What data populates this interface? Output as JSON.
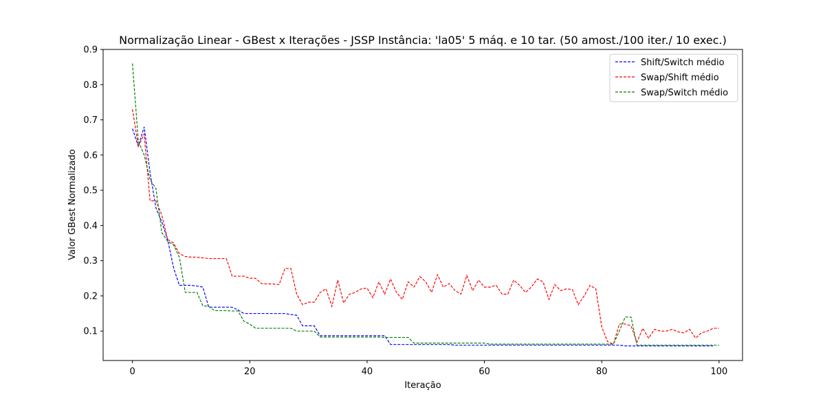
{
  "chart_data": {
    "type": "line",
    "title": "Normalização Linear - GBest x Iterações - JSSP Instância: 'la05' 5 máq. e 10 tar. (50 amost./100 iter./ 10 exec.)",
    "xlabel": "Iteração",
    "ylabel": "Valor GBest Normalizado",
    "xlim": [
      -5,
      104
    ],
    "ylim": [
      0.0165,
      0.9
    ],
    "xticks": [
      0,
      20,
      40,
      60,
      80,
      100
    ],
    "xtick_labels": [
      "0",
      "20",
      "40",
      "60",
      "80",
      "100"
    ],
    "yticks": [
      0.1,
      0.2,
      0.3,
      0.4,
      0.5,
      0.6,
      0.7,
      0.8,
      0.9
    ],
    "ytick_labels": [
      "0.1",
      "0.2",
      "0.3",
      "0.4",
      "0.5",
      "0.6",
      "0.7",
      "0.8",
      "0.9"
    ],
    "grid": false,
    "legend_position": "top-right",
    "line_style": "dashed",
    "series": [
      {
        "name": "Shift/Switch médio",
        "color": "#0000ff",
        "values": [
          0.675,
          0.625,
          0.68,
          0.55,
          0.45,
          0.41,
          0.36,
          0.28,
          0.23,
          0.23,
          0.23,
          0.228,
          0.225,
          0.168,
          0.168,
          0.168,
          0.168,
          0.168,
          0.16,
          0.15,
          0.15,
          0.15,
          0.15,
          0.15,
          0.15,
          0.15,
          0.15,
          0.147,
          0.145,
          0.115,
          0.115,
          0.115,
          0.087,
          0.087,
          0.087,
          0.087,
          0.087,
          0.087,
          0.087,
          0.087,
          0.087,
          0.087,
          0.087,
          0.087,
          0.062,
          0.062,
          0.062,
          0.062,
          0.062,
          0.062,
          0.062,
          0.062,
          0.062,
          0.062,
          0.062,
          0.06,
          0.06,
          0.06,
          0.06,
          0.06,
          0.06,
          0.06,
          0.06,
          0.06,
          0.06,
          0.06,
          0.06,
          0.06,
          0.06,
          0.06,
          0.06,
          0.06,
          0.06,
          0.06,
          0.06,
          0.06,
          0.06,
          0.06,
          0.06,
          0.06,
          0.06,
          0.06,
          0.06,
          0.06,
          0.058,
          0.058,
          0.058,
          0.058,
          0.058,
          0.058,
          0.058,
          0.058,
          0.058,
          0.058,
          0.058,
          0.058,
          0.058,
          0.058,
          0.058,
          0.058
        ]
      },
      {
        "name": "Swap/Shift médio",
        "color": "#ff0000",
        "values": [
          0.73,
          0.625,
          0.66,
          0.47,
          0.47,
          0.43,
          0.36,
          0.35,
          0.32,
          0.312,
          0.31,
          0.31,
          0.308,
          0.306,
          0.306,
          0.306,
          0.306,
          0.256,
          0.256,
          0.256,
          0.25,
          0.25,
          0.235,
          0.234,
          0.234,
          0.232,
          0.278,
          0.278,
          0.205,
          0.175,
          0.182,
          0.182,
          0.21,
          0.22,
          0.17,
          0.245,
          0.18,
          0.205,
          0.21,
          0.22,
          0.222,
          0.195,
          0.24,
          0.205,
          0.248,
          0.21,
          0.19,
          0.24,
          0.225,
          0.255,
          0.24,
          0.21,
          0.26,
          0.225,
          0.235,
          0.215,
          0.205,
          0.258,
          0.215,
          0.245,
          0.225,
          0.225,
          0.23,
          0.205,
          0.205,
          0.245,
          0.23,
          0.21,
          0.225,
          0.248,
          0.24,
          0.19,
          0.232,
          0.215,
          0.22,
          0.218,
          0.175,
          0.2,
          0.23,
          0.22,
          0.112,
          0.07,
          0.063,
          0.12,
          0.12,
          0.115,
          0.068,
          0.108,
          0.08,
          0.105,
          0.1,
          0.1,
          0.105,
          0.098,
          0.095,
          0.105,
          0.08,
          0.095,
          0.1,
          0.108,
          0.108
        ]
      },
      {
        "name": "Swap/Switch médio",
        "color": "#008000",
        "values": [
          0.86,
          0.64,
          0.6,
          0.53,
          0.505,
          0.38,
          0.355,
          0.345,
          0.31,
          0.21,
          0.21,
          0.21,
          0.172,
          0.17,
          0.158,
          0.158,
          0.158,
          0.157,
          0.157,
          0.128,
          0.12,
          0.108,
          0.108,
          0.108,
          0.108,
          0.108,
          0.108,
          0.108,
          0.1,
          0.1,
          0.1,
          0.1,
          0.083,
          0.083,
          0.083,
          0.083,
          0.083,
          0.083,
          0.083,
          0.083,
          0.083,
          0.083,
          0.083,
          0.082,
          0.082,
          0.082,
          0.082,
          0.082,
          0.066,
          0.066,
          0.066,
          0.066,
          0.066,
          0.066,
          0.066,
          0.066,
          0.066,
          0.066,
          0.066,
          0.066,
          0.066,
          0.063,
          0.063,
          0.063,
          0.063,
          0.063,
          0.063,
          0.063,
          0.063,
          0.063,
          0.063,
          0.063,
          0.063,
          0.063,
          0.063,
          0.063,
          0.063,
          0.063,
          0.063,
          0.063,
          0.063,
          0.063,
          0.063,
          0.1,
          0.14,
          0.14,
          0.06,
          0.06,
          0.06,
          0.06,
          0.06,
          0.06,
          0.06,
          0.06,
          0.06,
          0.06,
          0.06,
          0.06,
          0.06,
          0.06,
          0.06
        ]
      }
    ]
  }
}
